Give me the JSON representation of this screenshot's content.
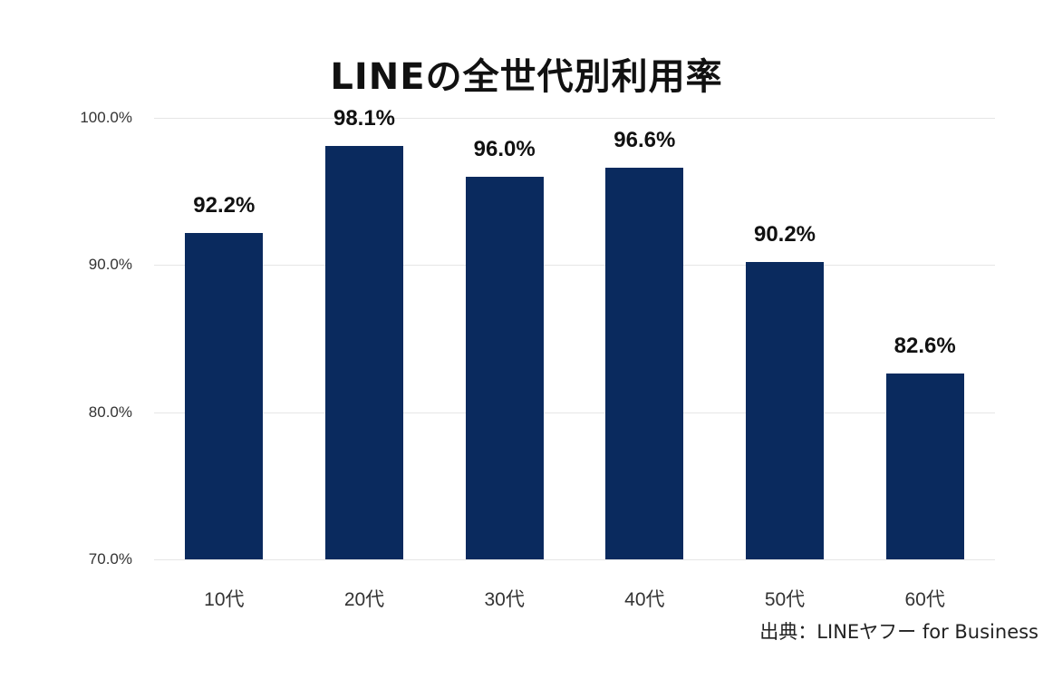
{
  "chart_data": {
    "type": "bar",
    "title": "LINEの全世代別利用率",
    "categories": [
      "10代",
      "20代",
      "30代",
      "40代",
      "50代",
      "60代"
    ],
    "values": [
      92.2,
      98.1,
      96.0,
      96.6,
      90.2,
      82.6
    ],
    "value_labels": [
      "92.2%",
      "98.1%",
      "96.0%",
      "96.6%",
      "90.2%",
      "82.6%"
    ],
    "xlabel": "",
    "ylabel": "",
    "ylim": [
      70,
      100
    ],
    "yticks": [
      70,
      80,
      90,
      100
    ],
    "ytick_labels": [
      "70.0%",
      "80.0%",
      "90.0%",
      "100.0%"
    ],
    "grid": true,
    "legend": null,
    "bar_color": "#0a2a5e",
    "source": "出典：LINEヤフー for Business"
  },
  "title": "LINEの全世代別利用率",
  "source": "出典：LINEヤフー for Business"
}
